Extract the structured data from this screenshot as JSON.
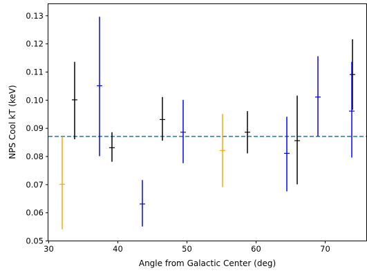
{
  "chart_data": {
    "type": "scatter",
    "xlabel": "Angle from Galactic Center (deg)",
    "ylabel": "NPS Cool kT (keV)",
    "xlim": [
      30,
      76
    ],
    "ylim": [
      0.05,
      0.134
    ],
    "x_ticks": [
      30,
      40,
      50,
      60,
      70
    ],
    "y_ticks": [
      0.05,
      0.06,
      0.07,
      0.08,
      0.09,
      0.1,
      0.11,
      0.12,
      0.13
    ],
    "x_tick_labels": [
      "30",
      "40",
      "50",
      "60",
      "70"
    ],
    "y_tick_labels": [
      "0.05",
      "0.06",
      "0.07",
      "0.08",
      "0.09",
      "0.10",
      "0.11",
      "0.12",
      "0.13"
    ],
    "grid": false,
    "reference_line": {
      "y": 0.087,
      "style": "dashed",
      "color": "#1f77b4"
    },
    "points": [
      {
        "x": 32.0,
        "y": 0.07,
        "ylow": 0.054,
        "yhigh": 0.087,
        "color": "#ffa500"
      },
      {
        "x": 33.8,
        "y": 0.1,
        "ylow": 0.086,
        "yhigh": 0.1135,
        "color": "#000000"
      },
      {
        "x": 37.4,
        "y": 0.105,
        "ylow": 0.08,
        "yhigh": 0.1295,
        "color": "#0000ff"
      },
      {
        "x": 39.2,
        "y": 0.083,
        "ylow": 0.078,
        "yhigh": 0.0885,
        "color": "#000000"
      },
      {
        "x": 43.6,
        "y": 0.063,
        "ylow": 0.055,
        "yhigh": 0.0715,
        "color": "#0000ff"
      },
      {
        "x": 46.5,
        "y": 0.093,
        "ylow": 0.0855,
        "yhigh": 0.101,
        "color": "#000000"
      },
      {
        "x": 49.5,
        "y": 0.0885,
        "ylow": 0.0775,
        "yhigh": 0.1,
        "color": "#0000ff"
      },
      {
        "x": 55.2,
        "y": 0.082,
        "ylow": 0.069,
        "yhigh": 0.095,
        "color": "#ffa500"
      },
      {
        "x": 58.8,
        "y": 0.0885,
        "ylow": 0.081,
        "yhigh": 0.096,
        "color": "#000000"
      },
      {
        "x": 64.5,
        "y": 0.081,
        "ylow": 0.0675,
        "yhigh": 0.094,
        "color": "#0000ff"
      },
      {
        "x": 66.0,
        "y": 0.0855,
        "ylow": 0.07,
        "yhigh": 0.1015,
        "color": "#000000"
      },
      {
        "x": 69.0,
        "y": 0.101,
        "ylow": 0.087,
        "yhigh": 0.1155,
        "color": "#0000ff"
      },
      {
        "x": 74.0,
        "y": 0.109,
        "ylow": 0.0965,
        "yhigh": 0.1215,
        "color": "#000000"
      },
      {
        "x": 73.9,
        "y": 0.096,
        "ylow": 0.0795,
        "yhigh": 0.1135,
        "color": "#0000ff"
      }
    ]
  }
}
